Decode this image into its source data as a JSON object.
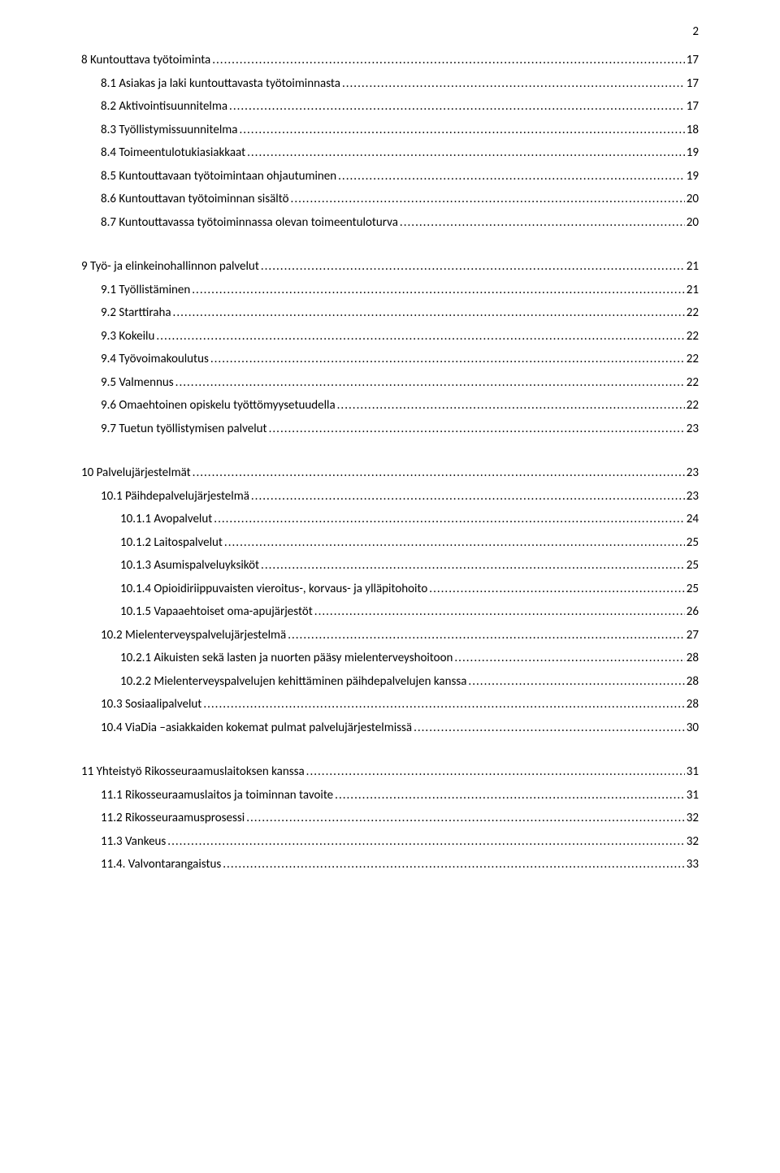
{
  "page_number": "2",
  "toc": [
    {
      "indent": 0,
      "label": "8      Kuntouttava työtoiminta",
      "page": "17",
      "section": true
    },
    {
      "indent": 1,
      "label": "8.1 Asiakas ja laki kuntouttavasta työtoiminnasta",
      "page": "17"
    },
    {
      "indent": 1,
      "label": "8.2 Aktivointisuunnitelma",
      "page": "17"
    },
    {
      "indent": 1,
      "label": "8.3 Työllistymissuunnitelma",
      "page": "18"
    },
    {
      "indent": 1,
      "label": "8.4 Toimeentulotukiasiakkaat",
      "page": "19"
    },
    {
      "indent": 1,
      "label": "8.5 Kuntouttavaan työtoimintaan ohjautuminen",
      "page": "19"
    },
    {
      "indent": 1,
      "label": "8.6 Kuntouttavan työtoiminnan sisältö",
      "page": "20"
    },
    {
      "indent": 1,
      "label": "8.7 Kuntouttavassa työtoiminnassa olevan toimeentuloturva",
      "page": "20"
    },
    {
      "spacer": true
    },
    {
      "indent": 0,
      "label": "9 Työ- ja elinkeinohallinnon palvelut",
      "page": "21",
      "section": true
    },
    {
      "indent": 1,
      "label": "9.1 Työllistäminen",
      "page": "21"
    },
    {
      "indent": 1,
      "label": "9.2 Starttiraha",
      "page": "22"
    },
    {
      "indent": 1,
      "label": "9.3 Kokeilu",
      "page": "22"
    },
    {
      "indent": 1,
      "label": "9.4 Työvoimakoulutus",
      "page": "22"
    },
    {
      "indent": 1,
      "label": "9.5 Valmennus",
      "page": "22"
    },
    {
      "indent": 1,
      "label": "9.6 Omaehtoinen opiskelu työttömyysetuudella",
      "page": "22"
    },
    {
      "indent": 1,
      "label": "9.7 Tuetun työllistymisen palvelut",
      "page": "23"
    },
    {
      "spacer": true
    },
    {
      "indent": 0,
      "label": "10 Palvelujärjestelmät",
      "page": "23",
      "section": true
    },
    {
      "indent": 1,
      "label": "10.1 Päihdepalvelujärjestelmä",
      "page": "23"
    },
    {
      "indent": 2,
      "label": "10.1.1 Avopalvelut",
      "page": "24"
    },
    {
      "indent": 2,
      "label": "10.1.2 Laitospalvelut",
      "page": "25"
    },
    {
      "indent": 2,
      "label": "10.1.3 Asumispalveluyksiköt",
      "page": "25"
    },
    {
      "indent": 2,
      "label": "10.1.4 Opioidiriippuvaisten vieroitus-, korvaus- ja ylläpitohoito",
      "page": "25"
    },
    {
      "indent": 2,
      "label": "10.1.5 Vapaaehtoiset oma-apujärjestöt",
      "page": "26"
    },
    {
      "indent": 1,
      "label": "10.2 Mielenterveyspalvelujärjestelmä",
      "page": "27"
    },
    {
      "indent": 2,
      "label": "10.2.1 Aikuisten sekä lasten ja nuorten pääsy mielenterveyshoitoon",
      "page": "28"
    },
    {
      "indent": 2,
      "label": "10.2.2 Mielenterveyspalvelujen kehittäminen päihdepalvelujen kanssa",
      "page": "28"
    },
    {
      "indent": 1,
      "label": "10.3 Sosiaalipalvelut",
      "page": "28"
    },
    {
      "indent": 1,
      "label": "10.4 ViaDia –asiakkaiden kokemat pulmat palvelujärjestelmissä",
      "page": "30"
    },
    {
      "spacer": true
    },
    {
      "indent": 0,
      "label": "11 Yhteistyö Rikosseuraamuslaitoksen kanssa",
      "page": "31",
      "section": true
    },
    {
      "indent": 1,
      "label": "11.1 Rikosseuraamuslaitos ja toiminnan tavoite",
      "page": "31"
    },
    {
      "indent": 1,
      "label": "11.2 Rikosseuraamusprosessi",
      "page": "32"
    },
    {
      "indent": 1,
      "label": "11.3 Vankeus",
      "page": "32"
    },
    {
      "indent": 1,
      "label": "11.4. Valvontarangaistus",
      "page": "33"
    }
  ]
}
